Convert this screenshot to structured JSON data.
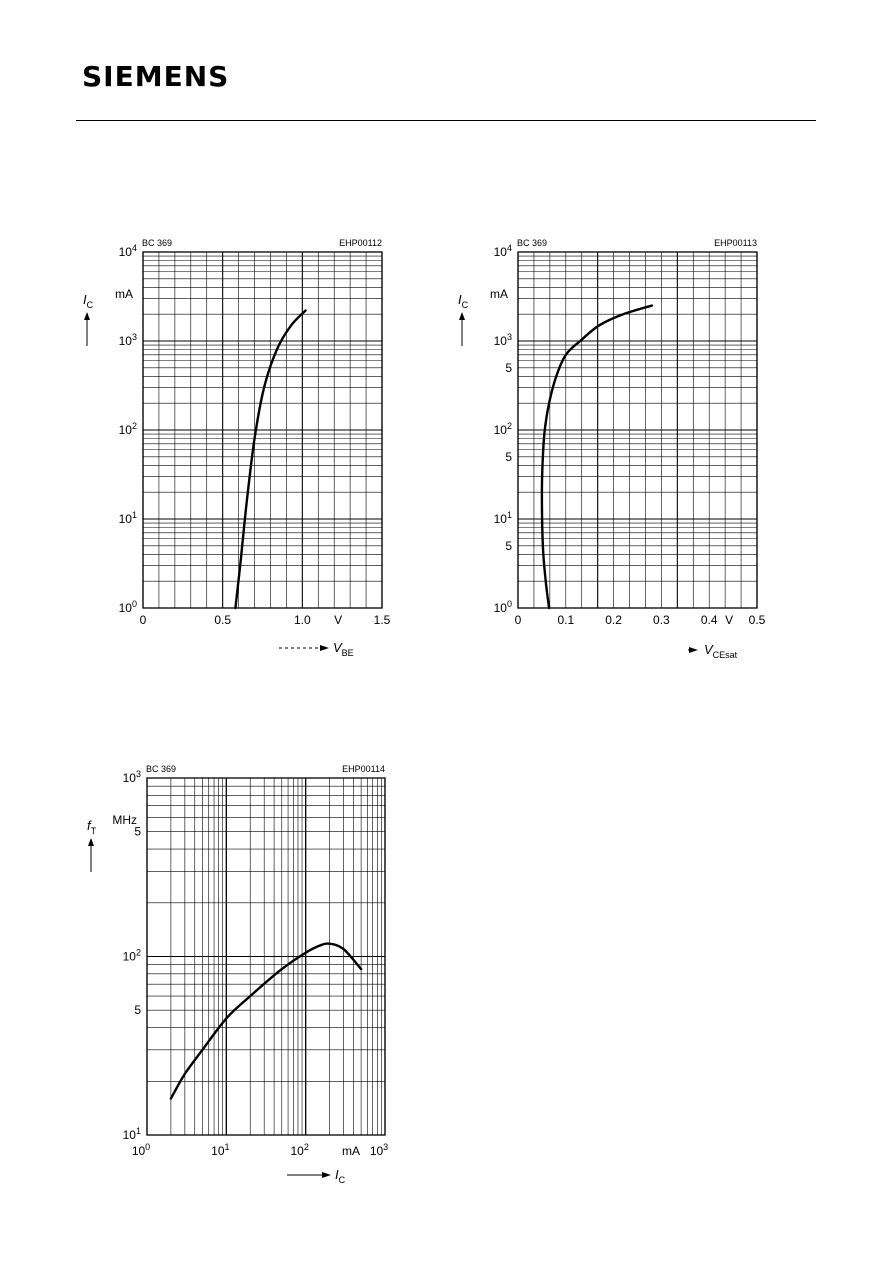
{
  "header": {
    "brand": "SIEMENS"
  },
  "chart_data": [
    {
      "type": "line",
      "part": "BC 369",
      "code": "EHP00112",
      "ylabel": "I_C",
      "yunit": "mA",
      "xlabel": "V_BE",
      "xunit": "V",
      "xscale": "linear",
      "yscale": "log",
      "xlim": [
        0,
        1.5
      ],
      "ylim": [
        1,
        10000
      ],
      "xticks": [
        0,
        0.5,
        1.0,
        1.5
      ],
      "xtick_labels": [
        "0",
        "0.5",
        "1.0",
        "1.5"
      ],
      "yticks": [
        1,
        10,
        100,
        1000,
        10000
      ],
      "ytick_labels": [
        {
          "b": "10",
          "e": "0"
        },
        {
          "b": "10",
          "e": "1"
        },
        {
          "b": "10",
          "e": "2"
        },
        {
          "b": "10",
          "e": "3"
        },
        {
          "b": "10",
          "e": "4"
        }
      ],
      "series": [
        {
          "x": [
            0.58,
            0.61,
            0.65,
            0.7,
            0.76,
            0.84,
            0.93,
            1.02
          ],
          "y": [
            1,
            3,
            15,
            80,
            300,
            800,
            1500,
            2200
          ]
        }
      ]
    },
    {
      "type": "line",
      "part": "BC 369",
      "code": "EHP00113",
      "ylabel": "I_C",
      "yunit": "mA",
      "xlabel": "V_CEsat",
      "xunit": "V",
      "xscale": "linear",
      "yscale": "log",
      "xlim": [
        0,
        0.5
      ],
      "ylim": [
        1,
        10000
      ],
      "xticks": [
        0,
        0.1,
        0.2,
        0.3,
        0.4,
        0.5
      ],
      "xtick_labels": [
        "0",
        "0.1",
        "0.2",
        "0.3",
        "0.4",
        "0.5"
      ],
      "yticks": [
        1,
        5,
        10,
        50,
        100,
        500,
        1000,
        10000
      ],
      "ytick_labels": [
        {
          "b": "10",
          "e": "0"
        },
        {
          "b": "5",
          "e": ""
        },
        {
          "b": "10",
          "e": "1"
        },
        {
          "b": "5",
          "e": ""
        },
        {
          "b": "10",
          "e": "2"
        },
        {
          "b": "5",
          "e": ""
        },
        {
          "b": "10",
          "e": "3"
        },
        {
          "b": "10",
          "e": "4"
        }
      ],
      "series": [
        {
          "x": [
            0.065,
            0.058,
            0.052,
            0.05,
            0.052,
            0.056,
            0.065,
            0.08,
            0.1,
            0.13,
            0.17,
            0.22,
            0.28
          ],
          "y": [
            1,
            2,
            5,
            20,
            50,
            100,
            200,
            400,
            700,
            1000,
            1500,
            2000,
            2500
          ]
        }
      ]
    },
    {
      "type": "line",
      "part": "BC 369",
      "code": "EHP00114",
      "ylabel": "f_T",
      "yunit": "MHz",
      "xlabel": "I_C",
      "xunit": "mA",
      "xscale": "log",
      "yscale": "log",
      "xlim": [
        1,
        1000
      ],
      "ylim": [
        10,
        1000
      ],
      "xticks": [
        1,
        10,
        100,
        1000
      ],
      "xtick_labels": [
        {
          "b": "10",
          "e": "0"
        },
        {
          "b": "10",
          "e": "1"
        },
        {
          "b": "10",
          "e": "2"
        },
        {
          "b": "10",
          "e": "3"
        }
      ],
      "yticks": [
        10,
        50,
        100,
        500,
        1000
      ],
      "ytick_labels": [
        {
          "b": "10",
          "e": "1"
        },
        {
          "b": "5",
          "e": ""
        },
        {
          "b": "10",
          "e": "2"
        },
        {
          "b": "5",
          "e": ""
        },
        {
          "b": "10",
          "e": "3"
        }
      ],
      "series": [
        {
          "x": [
            2,
            3,
            5,
            10,
            20,
            50,
            100,
            150,
            200,
            300,
            500
          ],
          "y": [
            16,
            22,
            30,
            45,
            60,
            85,
            105,
            115,
            118,
            110,
            85
          ]
        }
      ]
    }
  ]
}
